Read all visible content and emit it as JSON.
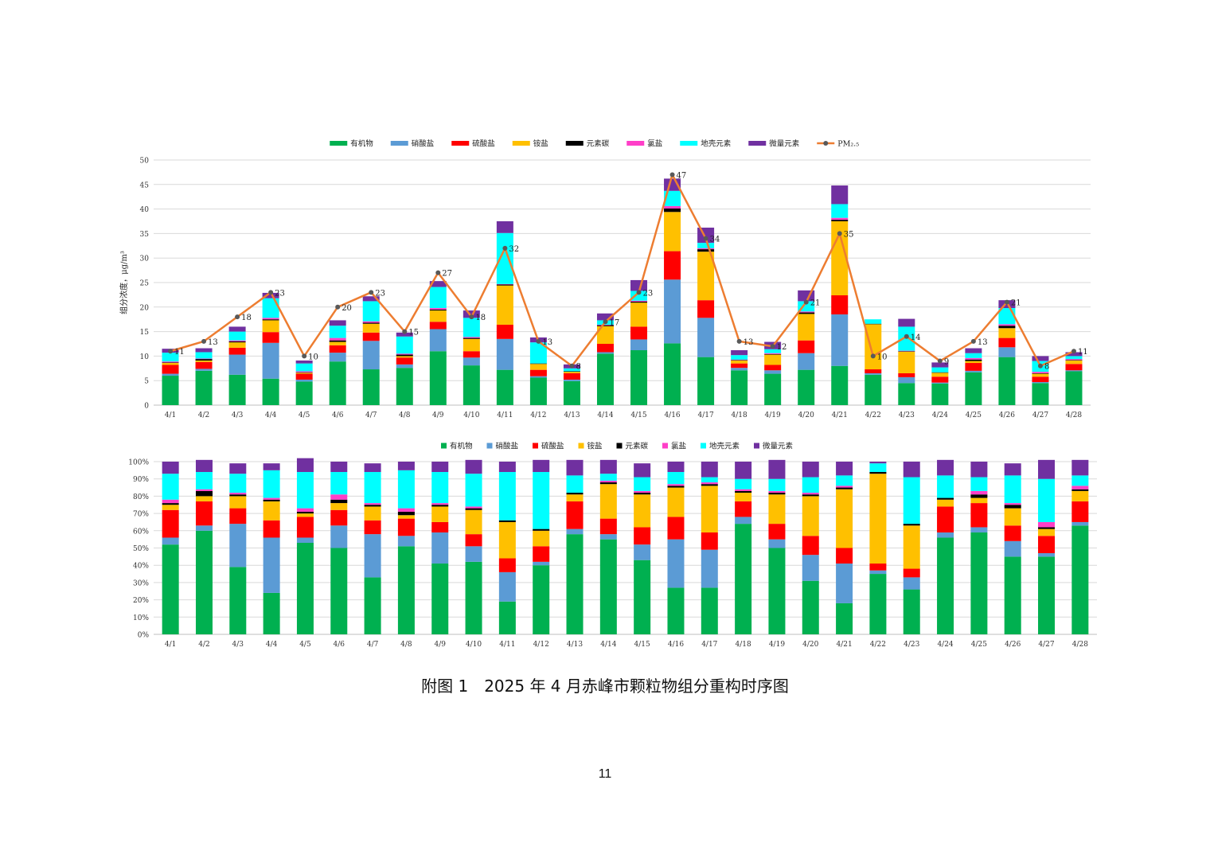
{
  "caption": "附图 1　2025 年 4 月赤峰市颗粒物组分重构时序图",
  "page_number": "11",
  "chart_data": [
    {
      "type": "bar",
      "stacked": true,
      "ylabel": "组分浓度，μg/m³",
      "ylim": [
        0,
        50
      ],
      "yticks": [
        0,
        5,
        10,
        15,
        20,
        25,
        30,
        35,
        40,
        45,
        50
      ],
      "grid": true,
      "legend_position": "top",
      "categories": [
        "4/1",
        "4/2",
        "4/3",
        "4/4",
        "4/5",
        "4/6",
        "4/7",
        "4/8",
        "4/9",
        "4/10",
        "4/11",
        "4/12",
        "4/13",
        "4/14",
        "4/15",
        "4/16",
        "4/17",
        "4/18",
        "4/19",
        "4/20",
        "4/21",
        "4/22",
        "4/23",
        "4/24",
        "4/25",
        "4/26",
        "4/27",
        "4/28"
      ],
      "series": [
        {
          "name": "有机物",
          "color": "#00b050",
          "values": [
            6.0,
            7.0,
            6.2,
            5.4,
            4.8,
            8.9,
            7.3,
            7.6,
            11.0,
            8.1,
            7.2,
            5.6,
            4.9,
            10.5,
            11.2,
            12.6,
            9.8,
            7.1,
            6.4,
            7.2,
            8.0,
            6.2,
            4.5,
            4.4,
            6.7,
            9.8,
            4.5,
            6.9
          ]
        },
        {
          "name": "硝酸盐",
          "color": "#5b9bd5",
          "values": [
            0.4,
            0.4,
            4.1,
            7.3,
            0.4,
            1.8,
            5.8,
            0.7,
            4.5,
            1.6,
            6.3,
            0.3,
            0.3,
            0.3,
            2.2,
            13.0,
            8.0,
            0.5,
            0.7,
            3.4,
            10.5,
            0.3,
            1.2,
            0.2,
            0.3,
            2.0,
            0.2,
            0.2
          ]
        },
        {
          "name": "硫酸盐",
          "color": "#ff0000",
          "values": [
            1.8,
            1.4,
            1.4,
            2.2,
            1.2,
            1.5,
            1.7,
            1.4,
            1.5,
            1.3,
            2.9,
            1.3,
            1.3,
            1.7,
            2.6,
            5.8,
            3.6,
            0.9,
            1.1,
            2.6,
            3.9,
            0.8,
            0.8,
            1.2,
            1.6,
            1.9,
            1.1,
            1.3
          ]
        },
        {
          "name": "铵盐",
          "color": "#ffc000",
          "values": [
            0.4,
            0.3,
            1.1,
            2.4,
            0.2,
            0.7,
            1.8,
            0.3,
            2.3,
            2.5,
            8.0,
            1.2,
            0.3,
            3.6,
            4.9,
            8.0,
            9.9,
            0.6,
            2.1,
            5.4,
            15.1,
            9.2,
            4.4,
            0.8,
            0.4,
            2.0,
            0.6,
            0.7
          ]
        },
        {
          "name": "元素碳",
          "color": "#000000",
          "values": [
            0.1,
            0.3,
            0.2,
            0.2,
            0.1,
            0.3,
            0.2,
            0.3,
            0.2,
            0.2,
            0.2,
            0.1,
            0.1,
            0.2,
            0.2,
            0.7,
            0.5,
            0.1,
            0.1,
            0.3,
            0.3,
            0.1,
            0.1,
            0.1,
            0.3,
            0.5,
            0.1,
            0.1
          ]
        },
        {
          "name": "氯盐",
          "color": "#ff3fc8",
          "values": [
            0.2,
            0.1,
            0.2,
            0.3,
            0.2,
            0.5,
            0.3,
            0.2,
            0.3,
            0.2,
            0.1,
            0.0,
            0.0,
            0.1,
            0.2,
            0.5,
            0.2,
            0.1,
            0.2,
            0.2,
            0.4,
            0.0,
            0.1,
            0.0,
            0.3,
            0.3,
            0.3,
            0.2
          ]
        },
        {
          "name": "地壳元素",
          "color": "#00ffff",
          "values": [
            1.8,
            1.3,
            1.8,
            4.0,
            1.6,
            2.5,
            4.1,
            3.5,
            4.3,
            3.9,
            10.4,
            4.3,
            0.6,
            0.9,
            2.0,
            3.1,
            1.1,
            0.9,
            0.8,
            2.1,
            2.8,
            0.9,
            4.9,
            1.0,
            1.0,
            3.3,
            2.2,
            0.6
          ]
        },
        {
          "name": "微量元素",
          "color": "#7030a0",
          "values": [
            0.8,
            0.8,
            1.0,
            1.1,
            0.6,
            1.1,
            1.0,
            0.8,
            1.2,
            1.5,
            2.4,
            1.0,
            0.8,
            1.4,
            2.2,
            2.5,
            3.1,
            1.0,
            1.5,
            2.2,
            3.8,
            0.0,
            1.6,
            1.0,
            1.0,
            1.6,
            1.0,
            0.8
          ]
        }
      ],
      "line": {
        "name": "PM₂.₅",
        "color": "#ed7d31",
        "marker_color": "#595959",
        "values": [
          11,
          13,
          18,
          23,
          10,
          20,
          23,
          15,
          27,
          18,
          32,
          13,
          8,
          17,
          23,
          47,
          34,
          13,
          12,
          21,
          35,
          10,
          14,
          9,
          13,
          21,
          8,
          11
        ]
      }
    },
    {
      "type": "bar",
      "stacked": true,
      "normalized": true,
      "ylim": [
        0,
        100
      ],
      "yticks": [
        "0%",
        "10%",
        "20%",
        "30%",
        "40%",
        "50%",
        "60%",
        "70%",
        "80%",
        "90%",
        "100%"
      ],
      "grid": true,
      "legend_position": "top",
      "categories": [
        "4/1",
        "4/2",
        "4/3",
        "4/4",
        "4/5",
        "4/6",
        "4/7",
        "4/8",
        "4/9",
        "4/10",
        "4/11",
        "4/12",
        "4/13",
        "4/14",
        "4/15",
        "4/16",
        "4/17",
        "4/18",
        "4/19",
        "4/20",
        "4/21",
        "4/22",
        "4/23",
        "4/24",
        "4/25",
        "4/26",
        "4/27",
        "4/28"
      ],
      "series": [
        {
          "name": "有机物",
          "color": "#00b050",
          "values": [
            52,
            60,
            39,
            24,
            53,
            50,
            33,
            51,
            41,
            42,
            19,
            40,
            58,
            55,
            43,
            27,
            27,
            64,
            50,
            31,
            18,
            35,
            26,
            56,
            59,
            45,
            45,
            63
          ]
        },
        {
          "name": "硝酸盐",
          "color": "#5b9bd5",
          "values": [
            4,
            3,
            25,
            32,
            3,
            13,
            25,
            6,
            18,
            9,
            17,
            2,
            3,
            3,
            9,
            28,
            22,
            4,
            5,
            15,
            23,
            2,
            7,
            3,
            3,
            9,
            2,
            2
          ]
        },
        {
          "name": "硫酸盐",
          "color": "#ff0000",
          "values": [
            16,
            14,
            9,
            10,
            12,
            9,
            8,
            10,
            6,
            7,
            8,
            9,
            16,
            9,
            10,
            13,
            10,
            9,
            9,
            11,
            9,
            4,
            5,
            15,
            14,
            9,
            10,
            12
          ]
        },
        {
          "name": "铵盐",
          "color": "#ffc000",
          "values": [
            3,
            3,
            7,
            11,
            2,
            4,
            8,
            2,
            9,
            14,
            21,
            9,
            4,
            20,
            19,
            17,
            27,
            5,
            17,
            23,
            34,
            52,
            25,
            4,
            3,
            10,
            4,
            6
          ]
        },
        {
          "name": "元素碳",
          "color": "#000000",
          "values": [
            1,
            3,
            1,
            1,
            1,
            2,
            1,
            2,
            1,
            1,
            1,
            1,
            1,
            1,
            1,
            1,
            1,
            1,
            1,
            1,
            1,
            1,
            1,
            1,
            2,
            2,
            1,
            1
          ]
        },
        {
          "name": "氯盐",
          "color": "#ff3fc8",
          "values": [
            2,
            1,
            1,
            1,
            2,
            3,
            1,
            2,
            1,
            1,
            0,
            0,
            0,
            1,
            1,
            1,
            1,
            1,
            1,
            1,
            1,
            0,
            0,
            0,
            2,
            1,
            3,
            2
          ]
        },
        {
          "name": "地壳元素",
          "color": "#00ffff",
          "values": [
            15,
            10,
            11,
            16,
            21,
            13,
            18,
            22,
            18,
            19,
            28,
            33,
            10,
            4,
            8,
            7,
            3,
            6,
            7,
            9,
            6,
            5,
            27,
            13,
            8,
            16,
            25,
            6
          ]
        },
        {
          "name": "微量元素",
          "color": "#7030a0",
          "values": [
            7,
            7,
            6,
            4,
            8,
            6,
            5,
            5,
            6,
            8,
            6,
            7,
            9,
            8,
            8,
            6,
            9,
            10,
            11,
            9,
            8,
            1,
            9,
            9,
            9,
            7,
            11,
            9
          ]
        }
      ]
    }
  ]
}
